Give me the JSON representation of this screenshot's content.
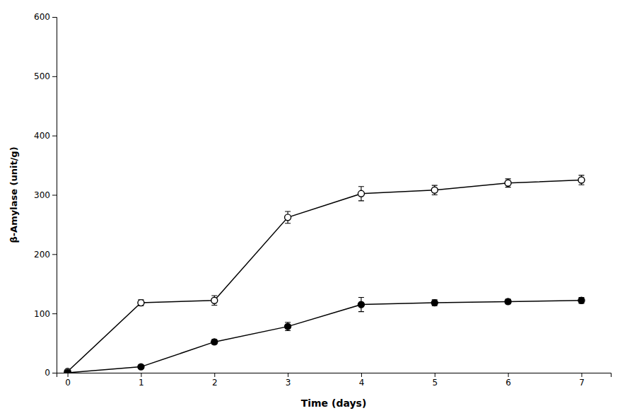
{
  "chart_data": {
    "type": "line",
    "xlabel": "Time (days)",
    "ylabel": "β-Amylase (unit/g)",
    "x": [
      0,
      1,
      2,
      3,
      4,
      5,
      6,
      7
    ],
    "xlim": [
      -0.15,
      7.4
    ],
    "ylim": [
      0,
      600
    ],
    "xticks": [
      0,
      1,
      2,
      3,
      4,
      5,
      6,
      7
    ],
    "yticks": [
      0,
      100,
      200,
      300,
      400,
      500,
      600
    ],
    "grid": false,
    "series": [
      {
        "values": [
          2,
          118,
          122,
          262,
          302,
          308,
          320,
          325
        ],
        "errors": [
          2,
          5,
          8,
          10,
          12,
          8,
          7,
          8
        ],
        "color": "#000000",
        "marker": "circle-open",
        "line_style": "solid"
      },
      {
        "values": [
          0,
          10,
          52,
          78,
          115,
          118,
          120,
          122
        ],
        "errors": [
          1,
          3,
          4,
          7,
          12,
          5,
          4,
          5
        ],
        "color": "#000000",
        "marker": "circle",
        "line_style": "solid"
      }
    ]
  }
}
